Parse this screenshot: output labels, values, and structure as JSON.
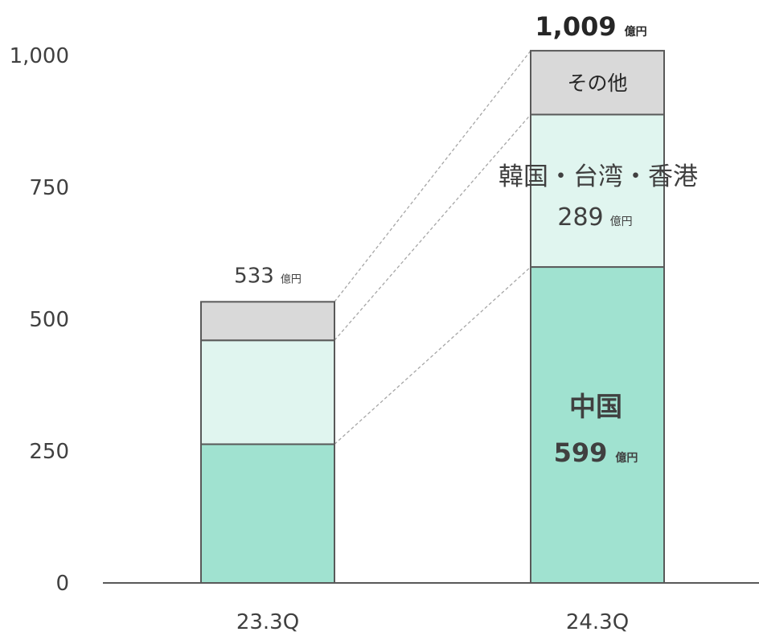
{
  "chart_data": {
    "type": "bar",
    "stacked": true,
    "categories": [
      "23.3Q",
      "24.3Q"
    ],
    "series": [
      {
        "name": "中国",
        "values": [
          263,
          599
        ],
        "color": "#a0e2d0"
      },
      {
        "name": "韓国・台湾・香港",
        "values": [
          197,
          289
        ],
        "color": "#e0f5ef"
      },
      {
        "name": "その他",
        "values": [
          73,
          121
        ],
        "color": "#d9d9d9"
      }
    ],
    "totals": [
      "533",
      "1,009"
    ],
    "unit": "億円",
    "segment_labels": {
      "china_name": "中国",
      "china_value": "599",
      "krhk_name": "韓国・台湾・香港",
      "krhk_value": "289",
      "other_name": "その他"
    },
    "y_ticks": [
      "0",
      "250",
      "500",
      "750",
      "1,000"
    ],
    "ylim": [
      0,
      1000
    ],
    "connector_lines": true,
    "grid": false
  }
}
